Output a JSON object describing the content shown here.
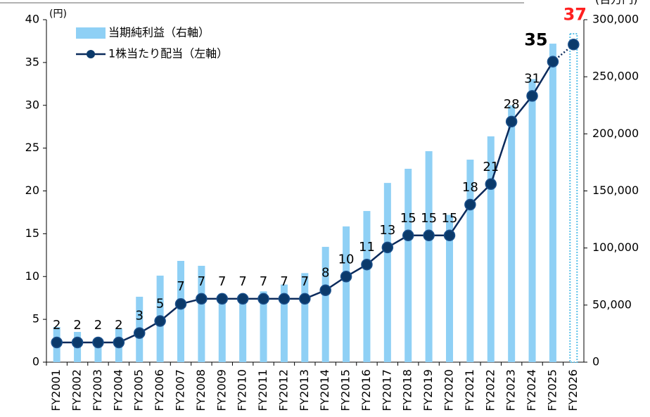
{
  "chart_data": {
    "type": "bar_line",
    "y_label": "(円)",
    "y2_label": "(百万円)",
    "categories": [
      "FY2001",
      "FY2002",
      "FY2003",
      "FY2004",
      "FY2005",
      "FY2006",
      "FY2007",
      "FY2008",
      "FY2009",
      "FY2010",
      "FY2011",
      "FY2012",
      "FY2013",
      "FY2014",
      "FY2015",
      "FY2016",
      "FY2017",
      "FY2018",
      "FY2019",
      "FY2020",
      "FY2021",
      "FY2022",
      "FY2023",
      "FY2024",
      "FY2025",
      "FY2026"
    ],
    "series": [
      {
        "name": "当期純利益（右軸）",
        "type": "bar",
        "axis": "y2",
        "color": "#8fd0f5",
        "values": [
          30800,
          26500,
          21500,
          29600,
          57300,
          75800,
          88700,
          84400,
          60000,
          55000,
          62000,
          68000,
          78000,
          101000,
          118900,
          132400,
          157000,
          169400,
          184800,
          129000,
          177400,
          197800,
          224900,
          248000,
          279000,
          287700
        ]
      },
      {
        "name": "1株当たり配当（左軸）",
        "type": "line",
        "axis": "y",
        "color": "#0b2a5b",
        "values": [
          2.3,
          2.3,
          2.3,
          2.3,
          3.4,
          4.8,
          6.8,
          7.4,
          7.4,
          7.4,
          7.4,
          7.4,
          7.4,
          8.4,
          10,
          11.4,
          13.4,
          14.8,
          14.8,
          14.8,
          18.4,
          20.8,
          28.1,
          31.1,
          35.1,
          37.1
        ],
        "value_labels": [
          "2",
          "2",
          "2",
          "2",
          "3",
          "5",
          "7",
          "7",
          "7",
          "7",
          "7",
          "7",
          "7",
          "8",
          "10",
          "11",
          "13",
          "15",
          "15",
          "15",
          "18",
          "21",
          "28",
          "31",
          "35",
          "37"
        ]
      }
    ],
    "ylim": [
      0,
      40
    ],
    "yticks": [
      0,
      5,
      10,
      15,
      20,
      25,
      30,
      35,
      40
    ],
    "y2lim": [
      0,
      300000
    ],
    "y2ticks": [
      0,
      {
        "value": 50000,
        "label": "50,000"
      },
      {
        "value": 100000,
        "label": "100,000"
      },
      {
        "value": 150000,
        "label": "150,000"
      },
      {
        "value": 200000,
        "label": "200,000"
      },
      {
        "value": 250000,
        "label": "250,000"
      },
      {
        "value": 300000,
        "label": "300,000"
      }
    ],
    "legend": "top-left"
  }
}
